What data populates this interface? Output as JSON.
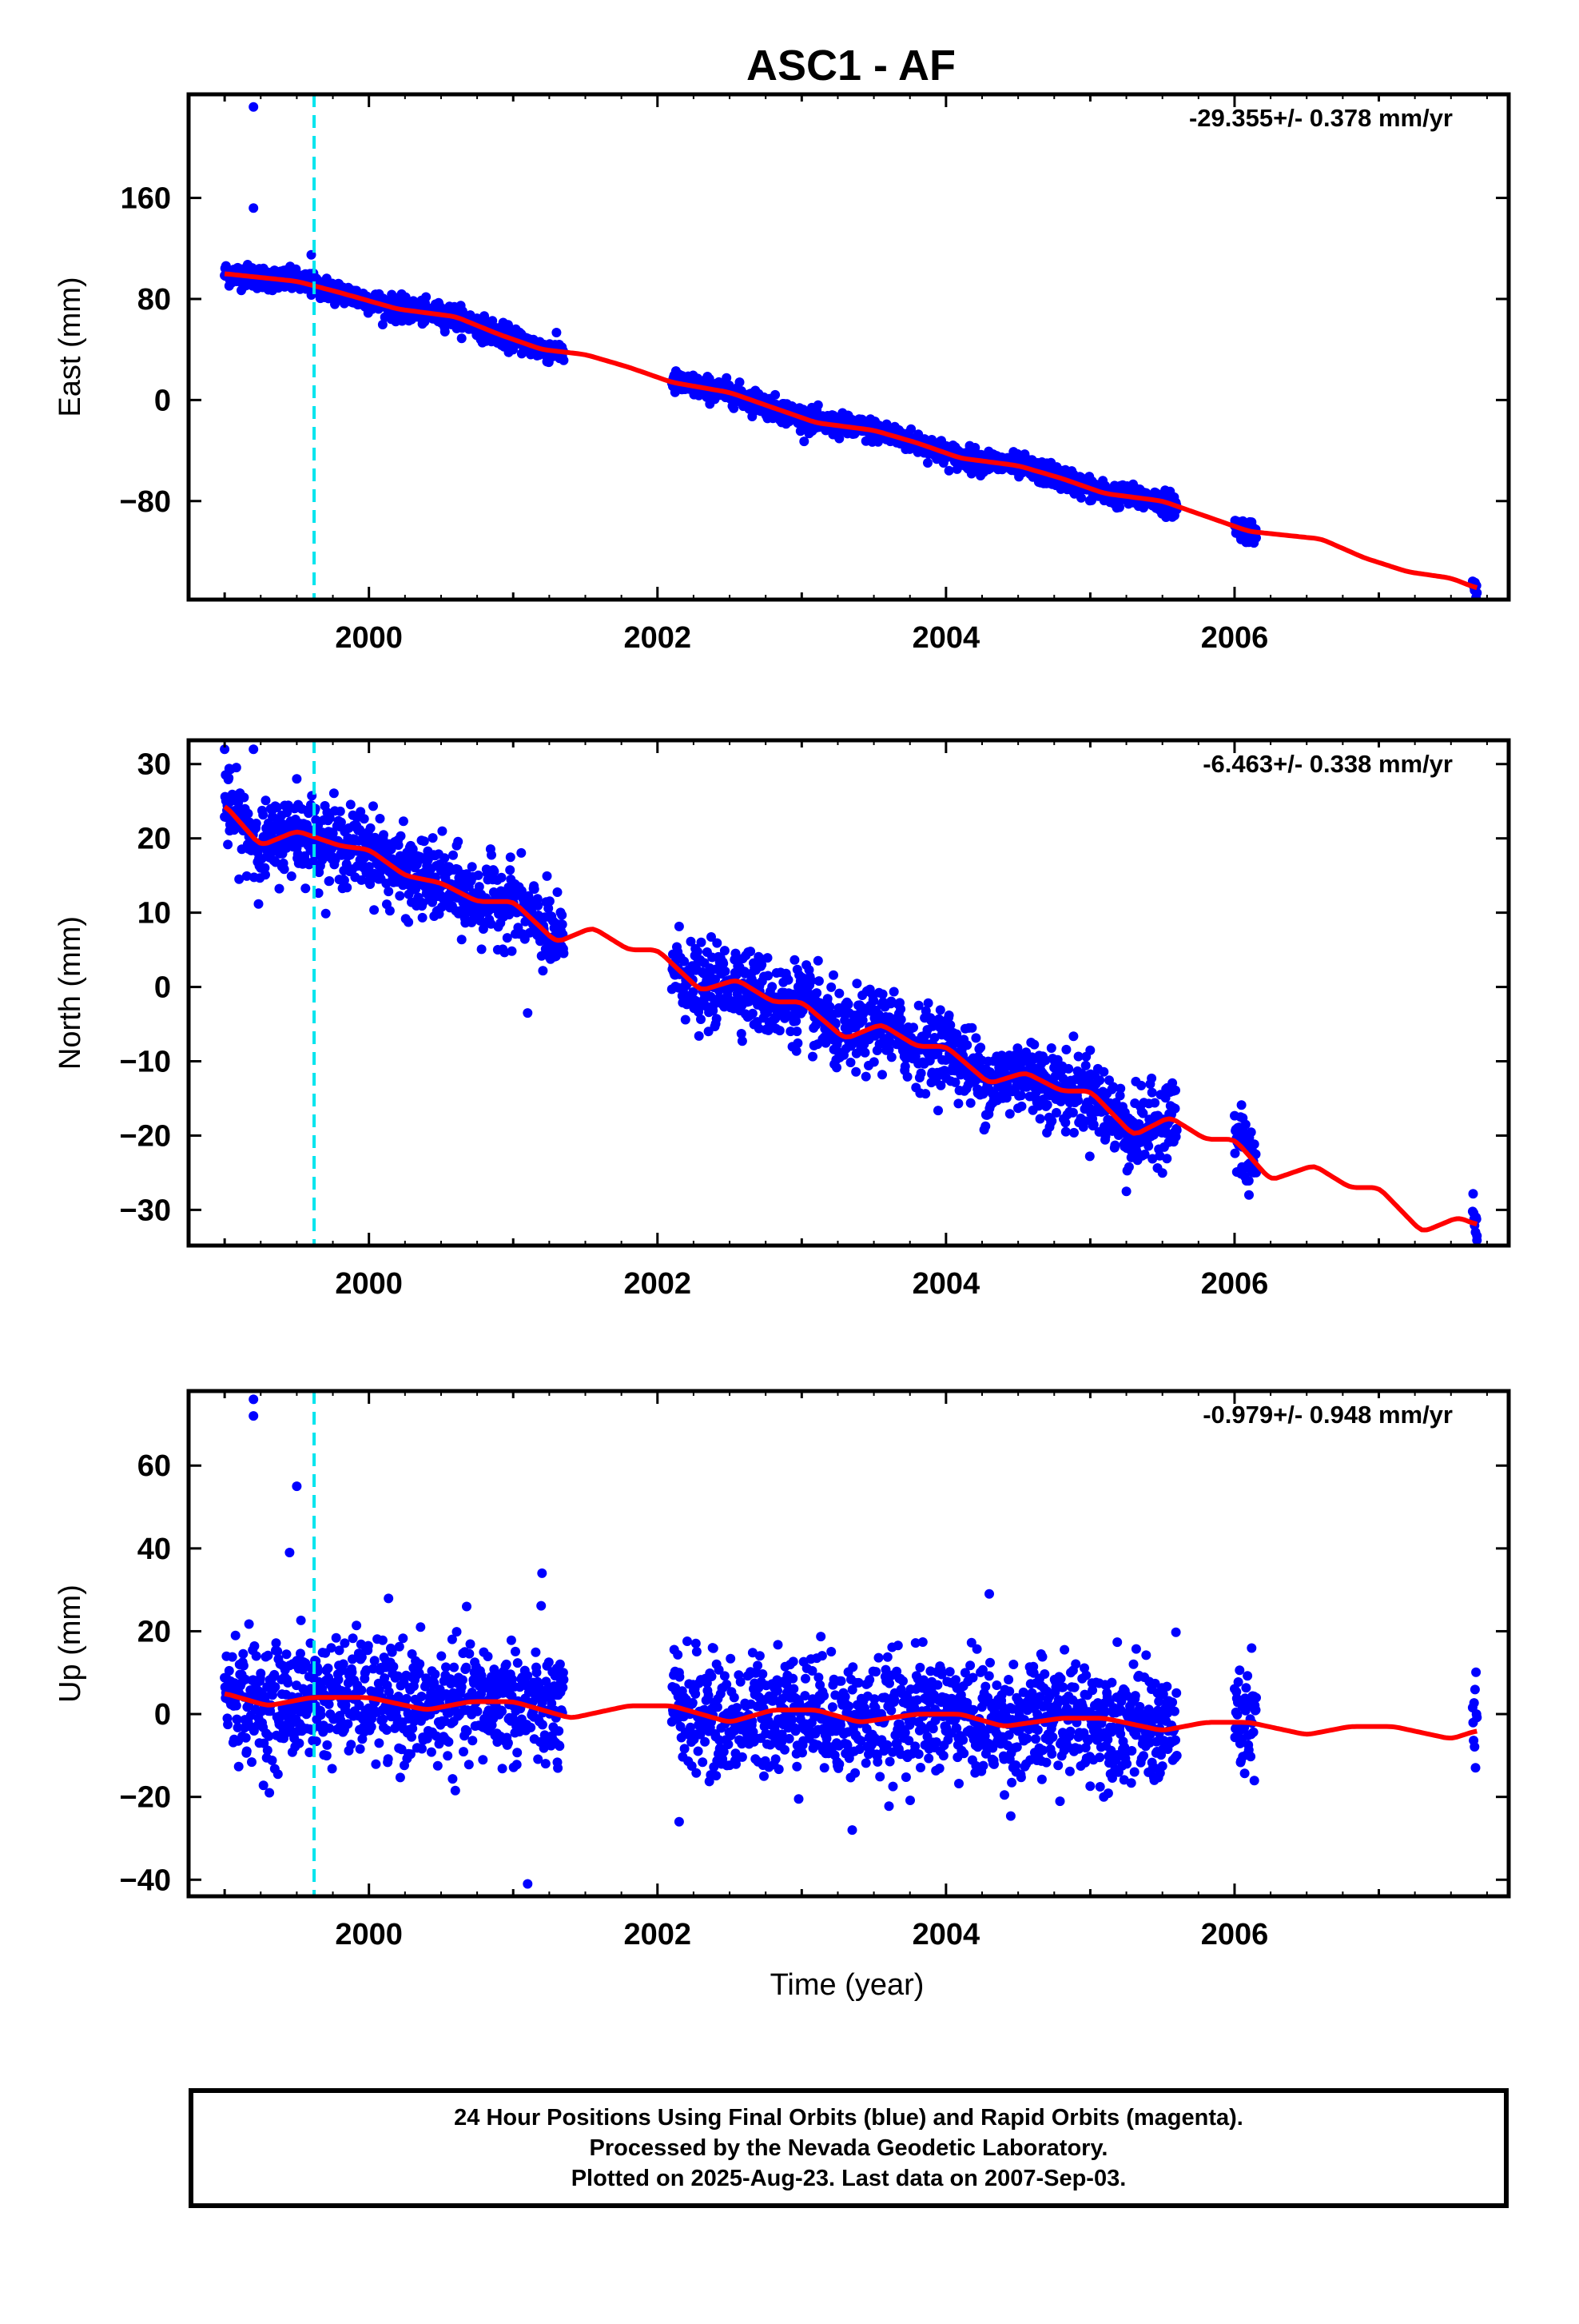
{
  "title": "ASC1 - AF",
  "xlabel": "Time (year)",
  "colors": {
    "points": "#0000ff",
    "fit": "#ff0000",
    "event": "#00e5ee"
  },
  "caption": [
    "24 Hour Positions Using Final Orbits (blue) and Rapid Orbits (magenta).",
    "Processed by the Nevada Geodetic Laboratory.",
    "Plotted on 2025-Aug-23. Last data on 2007-Sep-03."
  ],
  "chart_data": [
    {
      "type": "scatter",
      "ylabel": "East (mm)",
      "rate": "-29.355+/- 0.378 mm/yr",
      "xlim": [
        1998.75,
        2007.9
      ],
      "ylim": [
        -158,
        242
      ],
      "x_ticks": [
        2000,
        2002,
        2004,
        2006
      ],
      "y_ticks": [
        -80,
        0,
        80,
        160
      ],
      "event_line_x": 1999.62,
      "segments": [
        [
          1999.0,
          2001.35
        ],
        [
          2002.1,
          2005.6
        ],
        [
          2006.0,
          2006.15
        ],
        [
          2007.65,
          2007.68
        ]
      ],
      "trend": {
        "start": 1999.0,
        "slope": -29.355,
        "offset": 100
      },
      "fit": [
        [
          1999.0,
          100
        ],
        [
          1999.5,
          94
        ],
        [
          1999.8,
          85
        ],
        [
          2000.2,
          72
        ],
        [
          2000.6,
          66
        ],
        [
          2000.9,
          52
        ],
        [
          2001.2,
          40
        ],
        [
          2001.5,
          36
        ],
        [
          2001.8,
          26
        ],
        [
          2002.1,
          14
        ],
        [
          2002.5,
          6
        ],
        [
          2002.8,
          -6
        ],
        [
          2003.1,
          -18
        ],
        [
          2003.5,
          -24
        ],
        [
          2003.8,
          -34
        ],
        [
          2004.1,
          -46
        ],
        [
          2004.5,
          -52
        ],
        [
          2004.8,
          -62
        ],
        [
          2005.1,
          -74
        ],
        [
          2005.5,
          -80
        ],
        [
          2005.8,
          -92
        ],
        [
          2006.1,
          -104
        ],
        [
          2006.6,
          -110
        ],
        [
          2006.9,
          -125
        ],
        [
          2007.2,
          -136
        ],
        [
          2007.5,
          -141
        ],
        [
          2007.68,
          -149
        ]
      ],
      "outliers": [
        [
          1999.2,
          232
        ],
        [
          1999.2,
          152
        ],
        [
          1999.6,
          115
        ],
        [
          2007.66,
          -148
        ]
      ]
    },
    {
      "type": "scatter",
      "ylabel": "North (mm)",
      "rate": "-6.463+/- 0.338 mm/yr",
      "xlim": [
        1998.75,
        2007.9
      ],
      "ylim": [
        -34.8,
        33.2
      ],
      "x_ticks": [
        2000,
        2002,
        2004,
        2006
      ],
      "y_ticks": [
        -30,
        -20,
        -10,
        0,
        10,
        20,
        30
      ],
      "event_line_x": 1999.62,
      "segments": [
        [
          1999.0,
          2001.35
        ],
        [
          2002.1,
          2005.6
        ],
        [
          2006.0,
          2006.15
        ],
        [
          2007.65,
          2007.68
        ]
      ],
      "trend": {
        "start": 1999.0,
        "slope": -6.463,
        "offset": 22
      },
      "fit": [
        [
          1999.0,
          24.5
        ],
        [
          1999.25,
          19
        ],
        [
          1999.5,
          21
        ],
        [
          1999.8,
          19
        ],
        [
          2000.0,
          18.5
        ],
        [
          2000.25,
          15
        ],
        [
          2000.5,
          14
        ],
        [
          2000.75,
          11.5
        ],
        [
          2001.0,
          11.5
        ],
        [
          2001.3,
          6
        ],
        [
          2001.55,
          8
        ],
        [
          2001.8,
          5
        ],
        [
          2002.0,
          5
        ],
        [
          2002.3,
          -0.5
        ],
        [
          2002.55,
          1
        ],
        [
          2002.8,
          -2
        ],
        [
          2003.0,
          -2
        ],
        [
          2003.3,
          -7
        ],
        [
          2003.55,
          -5
        ],
        [
          2003.8,
          -8
        ],
        [
          2004.0,
          -8
        ],
        [
          2004.3,
          -13
        ],
        [
          2004.55,
          -11.5
        ],
        [
          2004.8,
          -14
        ],
        [
          2005.0,
          -14
        ],
        [
          2005.3,
          -20
        ],
        [
          2005.55,
          -17.5
        ],
        [
          2005.8,
          -20.5
        ],
        [
          2006.0,
          -20.5
        ],
        [
          2006.25,
          -26
        ],
        [
          2006.55,
          -24
        ],
        [
          2006.8,
          -27
        ],
        [
          2007.0,
          -27
        ],
        [
          2007.3,
          -33
        ],
        [
          2007.55,
          -31
        ],
        [
          2007.68,
          -32
        ]
      ],
      "outliers": [
        [
          1999.0,
          32
        ],
        [
          1999.2,
          32
        ],
        [
          1999.5,
          28
        ],
        [
          2001.1,
          -3.5
        ],
        [
          2005.25,
          -27.5
        ],
        [
          2006.1,
          -28
        ],
        [
          2007.68,
          -33.5
        ]
      ]
    },
    {
      "type": "scatter",
      "ylabel": "Up (mm)",
      "rate": "-0.979+/- 0.948 mm/yr",
      "xlim": [
        1998.75,
        2007.9
      ],
      "ylim": [
        -44,
        78
      ],
      "x_ticks": [
        2000,
        2002,
        2004,
        2006
      ],
      "y_ticks": [
        -40,
        -20,
        0,
        20,
        40,
        60
      ],
      "event_line_x": 1999.62,
      "segments": [
        [
          1999.0,
          2001.35
        ],
        [
          2002.1,
          2005.6
        ],
        [
          2006.0,
          2006.15
        ],
        [
          2007.65,
          2007.68
        ]
      ],
      "trend": {
        "start": 1999.0,
        "slope": -0.979,
        "offset": 4
      },
      "fit": [
        [
          1999.0,
          5
        ],
        [
          1999.3,
          2
        ],
        [
          1999.6,
          4
        ],
        [
          2000.0,
          4
        ],
        [
          2000.4,
          1
        ],
        [
          2000.7,
          3
        ],
        [
          2001.0,
          3
        ],
        [
          2001.4,
          -1
        ],
        [
          2001.8,
          2
        ],
        [
          2002.1,
          2
        ],
        [
          2002.5,
          -2
        ],
        [
          2002.8,
          1
        ],
        [
          2003.1,
          1
        ],
        [
          2003.4,
          -2
        ],
        [
          2003.8,
          0
        ],
        [
          2004.1,
          0
        ],
        [
          2004.4,
          -3
        ],
        [
          2004.8,
          -1
        ],
        [
          2005.1,
          -1
        ],
        [
          2005.5,
          -4
        ],
        [
          2005.8,
          -2
        ],
        [
          2006.1,
          -2
        ],
        [
          2006.5,
          -5
        ],
        [
          2006.8,
          -3
        ],
        [
          2007.1,
          -3
        ],
        [
          2007.5,
          -6
        ],
        [
          2007.68,
          -4
        ]
      ],
      "outliers": [
        [
          1999.2,
          76
        ],
        [
          1999.2,
          72
        ],
        [
          1999.5,
          55
        ],
        [
          1999.45,
          39
        ],
        [
          2001.1,
          -41
        ],
        [
          2001.2,
          34
        ],
        [
          2002.15,
          -26
        ],
        [
          2003.35,
          -28
        ],
        [
          2004.3,
          29
        ]
      ]
    }
  ]
}
